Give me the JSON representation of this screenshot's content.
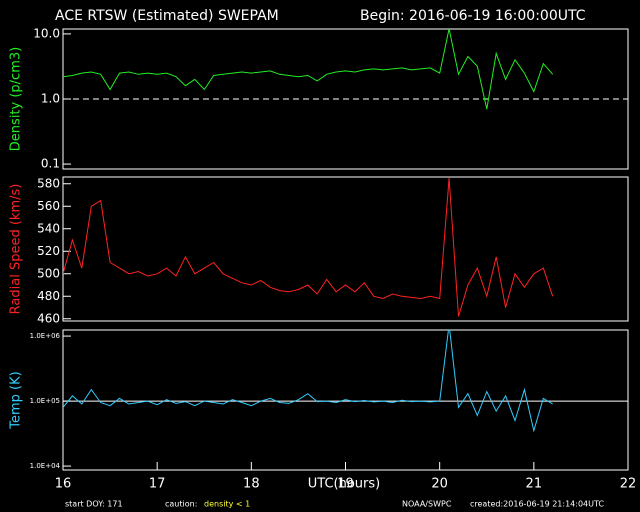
{
  "header": {
    "title": "ACE RTSW (Estimated) SWEPAM",
    "begin": "Begin: 2016-06-19 16:00:00UTC"
  },
  "footer": {
    "start": "start DOY: 171",
    "caution": "caution:",
    "caution_note": "density < 1",
    "source": "NOAA/SWPC",
    "created": "created:2016-06-19 21:14:04UTC"
  },
  "chart_data": [
    {
      "type": "line",
      "y_label": "Density (p/cm3)",
      "color": "#22ee22",
      "log": true,
      "xlim": [
        16,
        22
      ],
      "ylim": [
        0.084,
        11.9
      ],
      "yticks": [
        {
          "value": 10,
          "label": "10.0"
        },
        {
          "value": 1,
          "label": "1.0"
        },
        0.1
      ],
      "hline": {
        "value": 1,
        "dashed": true,
        "color": "#ffffff"
      },
      "x": [
        16.0,
        16.1,
        16.2,
        16.3,
        16.4,
        16.5,
        16.6,
        16.7,
        16.8,
        16.9,
        17.0,
        17.1,
        17.2,
        17.3,
        17.4,
        17.5,
        17.6,
        17.7,
        17.8,
        17.9,
        18.0,
        18.1,
        18.2,
        18.3,
        18.4,
        18.5,
        18.6,
        18.7,
        18.8,
        18.9,
        19.0,
        19.1,
        19.2,
        19.3,
        19.4,
        19.5,
        19.6,
        19.7,
        19.8,
        19.9,
        20.0,
        20.1,
        20.2,
        20.3,
        20.4,
        20.5,
        20.6,
        20.7,
        20.8,
        20.9,
        21.0,
        21.1,
        21.2
      ],
      "values": [
        2.2,
        2.3,
        2.5,
        2.6,
        2.4,
        1.4,
        2.5,
        2.6,
        2.4,
        2.5,
        2.4,
        2.5,
        2.2,
        1.6,
        2.0,
        1.4,
        2.3,
        2.4,
        2.5,
        2.6,
        2.5,
        2.6,
        2.7,
        2.4,
        2.3,
        2.2,
        2.3,
        1.9,
        2.4,
        2.6,
        2.7,
        2.6,
        2.8,
        2.9,
        2.8,
        2.9,
        3.0,
        2.8,
        2.9,
        3.0,
        2.5,
        12,
        2.4,
        4.5,
        3.2,
        0.7,
        5.0,
        2.0,
        4.0,
        2.5,
        1.3,
        3.5,
        2.4
      ]
    },
    {
      "type": "line",
      "y_label": "Radial Speed (km/s)",
      "color": "#ff2222",
      "log": false,
      "xlim": [
        16,
        22
      ],
      "ylim": [
        458,
        586
      ],
      "yticks": [
        460,
        480,
        500,
        520,
        540,
        560,
        580
      ],
      "x": [
        16.0,
        16.1,
        16.2,
        16.3,
        16.4,
        16.5,
        16.6,
        16.7,
        16.8,
        16.9,
        17.0,
        17.1,
        17.2,
        17.3,
        17.4,
        17.5,
        17.6,
        17.7,
        17.8,
        17.9,
        18.0,
        18.1,
        18.2,
        18.3,
        18.4,
        18.5,
        18.6,
        18.7,
        18.8,
        18.9,
        19.0,
        19.1,
        19.2,
        19.3,
        19.4,
        19.5,
        19.6,
        19.7,
        19.8,
        19.9,
        20.0,
        20.1,
        20.2,
        20.3,
        20.4,
        20.5,
        20.6,
        20.7,
        20.8,
        20.9,
        21.0,
        21.1,
        21.2
      ],
      "values": [
        500,
        530,
        505,
        560,
        565,
        510,
        505,
        500,
        502,
        498,
        500,
        505,
        498,
        515,
        500,
        505,
        510,
        500,
        496,
        492,
        490,
        494,
        488,
        485,
        484,
        486,
        490,
        482,
        495,
        484,
        490,
        484,
        492,
        480,
        478,
        482,
        480,
        479,
        478,
        480,
        478,
        585,
        462,
        490,
        505,
        480,
        515,
        470,
        500,
        488,
        500,
        505,
        480
      ]
    },
    {
      "type": "line",
      "y_label": "Temp (K)",
      "x_label": "UTC(hours)",
      "color": "#33ccff",
      "log": true,
      "xlim": [
        16,
        22
      ],
      "ylim": [
        8700,
        1240000
      ],
      "xticks": [
        16,
        17,
        18,
        19,
        20,
        21,
        22
      ],
      "yticks": [
        {
          "value": 1000000,
          "label": "1.0E+06"
        },
        {
          "value": 100000,
          "label": "1.0E+05"
        },
        {
          "value": 10000,
          "label": "1.0E+04"
        }
      ],
      "hline": {
        "value": 100000,
        "dashed": false,
        "color": "#ffffff"
      },
      "x": [
        16.0,
        16.1,
        16.2,
        16.3,
        16.4,
        16.5,
        16.6,
        16.7,
        16.8,
        16.9,
        17.0,
        17.1,
        17.2,
        17.3,
        17.4,
        17.5,
        17.6,
        17.7,
        17.8,
        17.9,
        18.0,
        18.1,
        18.2,
        18.3,
        18.4,
        18.5,
        18.6,
        18.7,
        18.8,
        18.9,
        19.0,
        19.1,
        19.2,
        19.3,
        19.4,
        19.5,
        19.6,
        19.7,
        19.8,
        19.9,
        20.0,
        20.1,
        20.2,
        20.3,
        20.4,
        20.5,
        20.6,
        20.7,
        20.8,
        20.9,
        21.0,
        21.1,
        21.2
      ],
      "values": [
        80000,
        120000,
        90000,
        150000,
        95000,
        85000,
        110000,
        90000,
        95000,
        100000,
        88000,
        105000,
        92000,
        98000,
        85000,
        100000,
        95000,
        90000,
        105000,
        95000,
        85000,
        100000,
        110000,
        95000,
        92000,
        105000,
        130000,
        98000,
        100000,
        95000,
        105000,
        98000,
        102000,
        97000,
        100000,
        95000,
        103000,
        98000,
        100000,
        97000,
        100000,
        1500000,
        80000,
        130000,
        60000,
        140000,
        70000,
        120000,
        50000,
        150000,
        35000,
        110000,
        90000
      ]
    }
  ]
}
